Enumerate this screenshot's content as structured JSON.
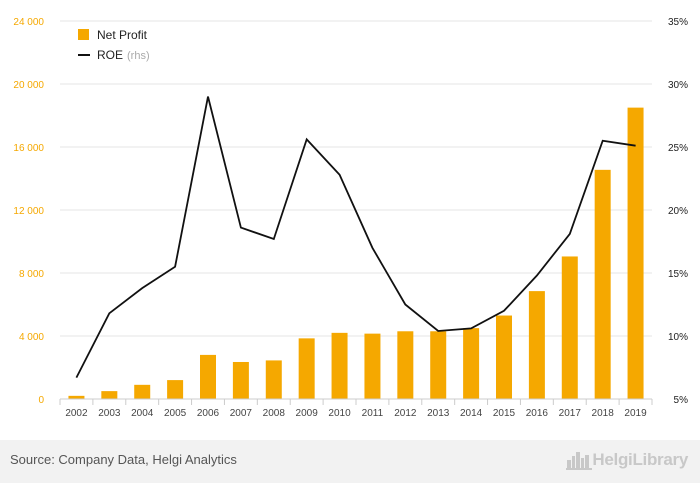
{
  "chart_data": {
    "type": "bar",
    "categories": [
      "2002",
      "2003",
      "2004",
      "2005",
      "2006",
      "2007",
      "2008",
      "2009",
      "2010",
      "2011",
      "2012",
      "2013",
      "2014",
      "2015",
      "2016",
      "2017",
      "2018",
      "2019"
    ],
    "series": [
      {
        "name": "Net Profit",
        "type": "bar",
        "axis": "left",
        "color": "#f5a800",
        "values": [
          200,
          500,
          900,
          1200,
          2800,
          2350,
          2450,
          3850,
          4200,
          4150,
          4300,
          4300,
          4500,
          5300,
          6850,
          9050,
          14550,
          18500
        ]
      },
      {
        "name": "ROE",
        "type": "line",
        "axis": "right",
        "color": "#111111",
        "values": [
          6.7,
          11.8,
          13.8,
          15.5,
          29.0,
          18.6,
          17.7,
          25.6,
          22.8,
          17.0,
          12.5,
          10.4,
          10.6,
          12.0,
          14.8,
          18.1,
          25.5,
          25.1
        ]
      }
    ],
    "y_left": {
      "ticks": [
        "0",
        "4 000",
        "8 000",
        "12 000",
        "16 000",
        "20 000",
        "24 000"
      ],
      "ylim": [
        0,
        24000
      ],
      "color": "#f5a800"
    },
    "y_right": {
      "ticks": [
        "5%",
        "10%",
        "15%",
        "20%",
        "25%",
        "30%",
        "35%"
      ],
      "ylim": [
        5,
        35
      ]
    },
    "grid": true,
    "legend": {
      "position": "top-left",
      "items": [
        {
          "label": "Net Profit",
          "note": ""
        },
        {
          "label": "ROE",
          "note": "(rhs)"
        }
      ]
    }
  },
  "footer": {
    "source": "Source: Company Data, Helgi Analytics",
    "brand": "HelgiLibrary",
    "brand_icon": "city-skyline-icon"
  }
}
